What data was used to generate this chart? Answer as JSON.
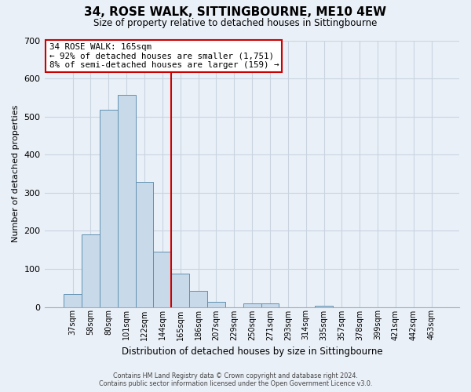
{
  "title": "34, ROSE WALK, SITTINGBOURNE, ME10 4EW",
  "subtitle": "Size of property relative to detached houses in Sittingbourne",
  "xlabel": "Distribution of detached houses by size in Sittingbourne",
  "ylabel": "Number of detached properties",
  "footnote1": "Contains HM Land Registry data © Crown copyright and database right 2024.",
  "footnote2": "Contains public sector information licensed under the Open Government Licence v3.0.",
  "annotation_line1": "34 ROSE WALK: 165sqm",
  "annotation_line2": "← 92% of detached houses are smaller (1,751)",
  "annotation_line3": "8% of semi-detached houses are larger (159) →",
  "bar_color": "#c8daea",
  "bar_edge_color": "#6090b0",
  "property_line_color": "#cc0000",
  "annotation_box_facecolor": "#ffffff",
  "annotation_box_edgecolor": "#cc0000",
  "background_color": "#eaf0f8",
  "grid_color": "#c8d4e0",
  "categories": [
    "37sqm",
    "58sqm",
    "80sqm",
    "101sqm",
    "122sqm",
    "144sqm",
    "165sqm",
    "186sqm",
    "207sqm",
    "229sqm",
    "250sqm",
    "271sqm",
    "293sqm",
    "314sqm",
    "335sqm",
    "357sqm",
    "378sqm",
    "399sqm",
    "421sqm",
    "442sqm",
    "463sqm"
  ],
  "values": [
    33,
    190,
    518,
    557,
    329,
    145,
    88,
    42,
    13,
    0,
    9,
    10,
    0,
    0,
    4,
    0,
    0,
    0,
    0,
    0,
    0
  ],
  "ylim": [
    0,
    700
  ],
  "yticks": [
    0,
    100,
    200,
    300,
    400,
    500,
    600,
    700
  ],
  "property_bar_index": 6,
  "bar_width": 1.0
}
